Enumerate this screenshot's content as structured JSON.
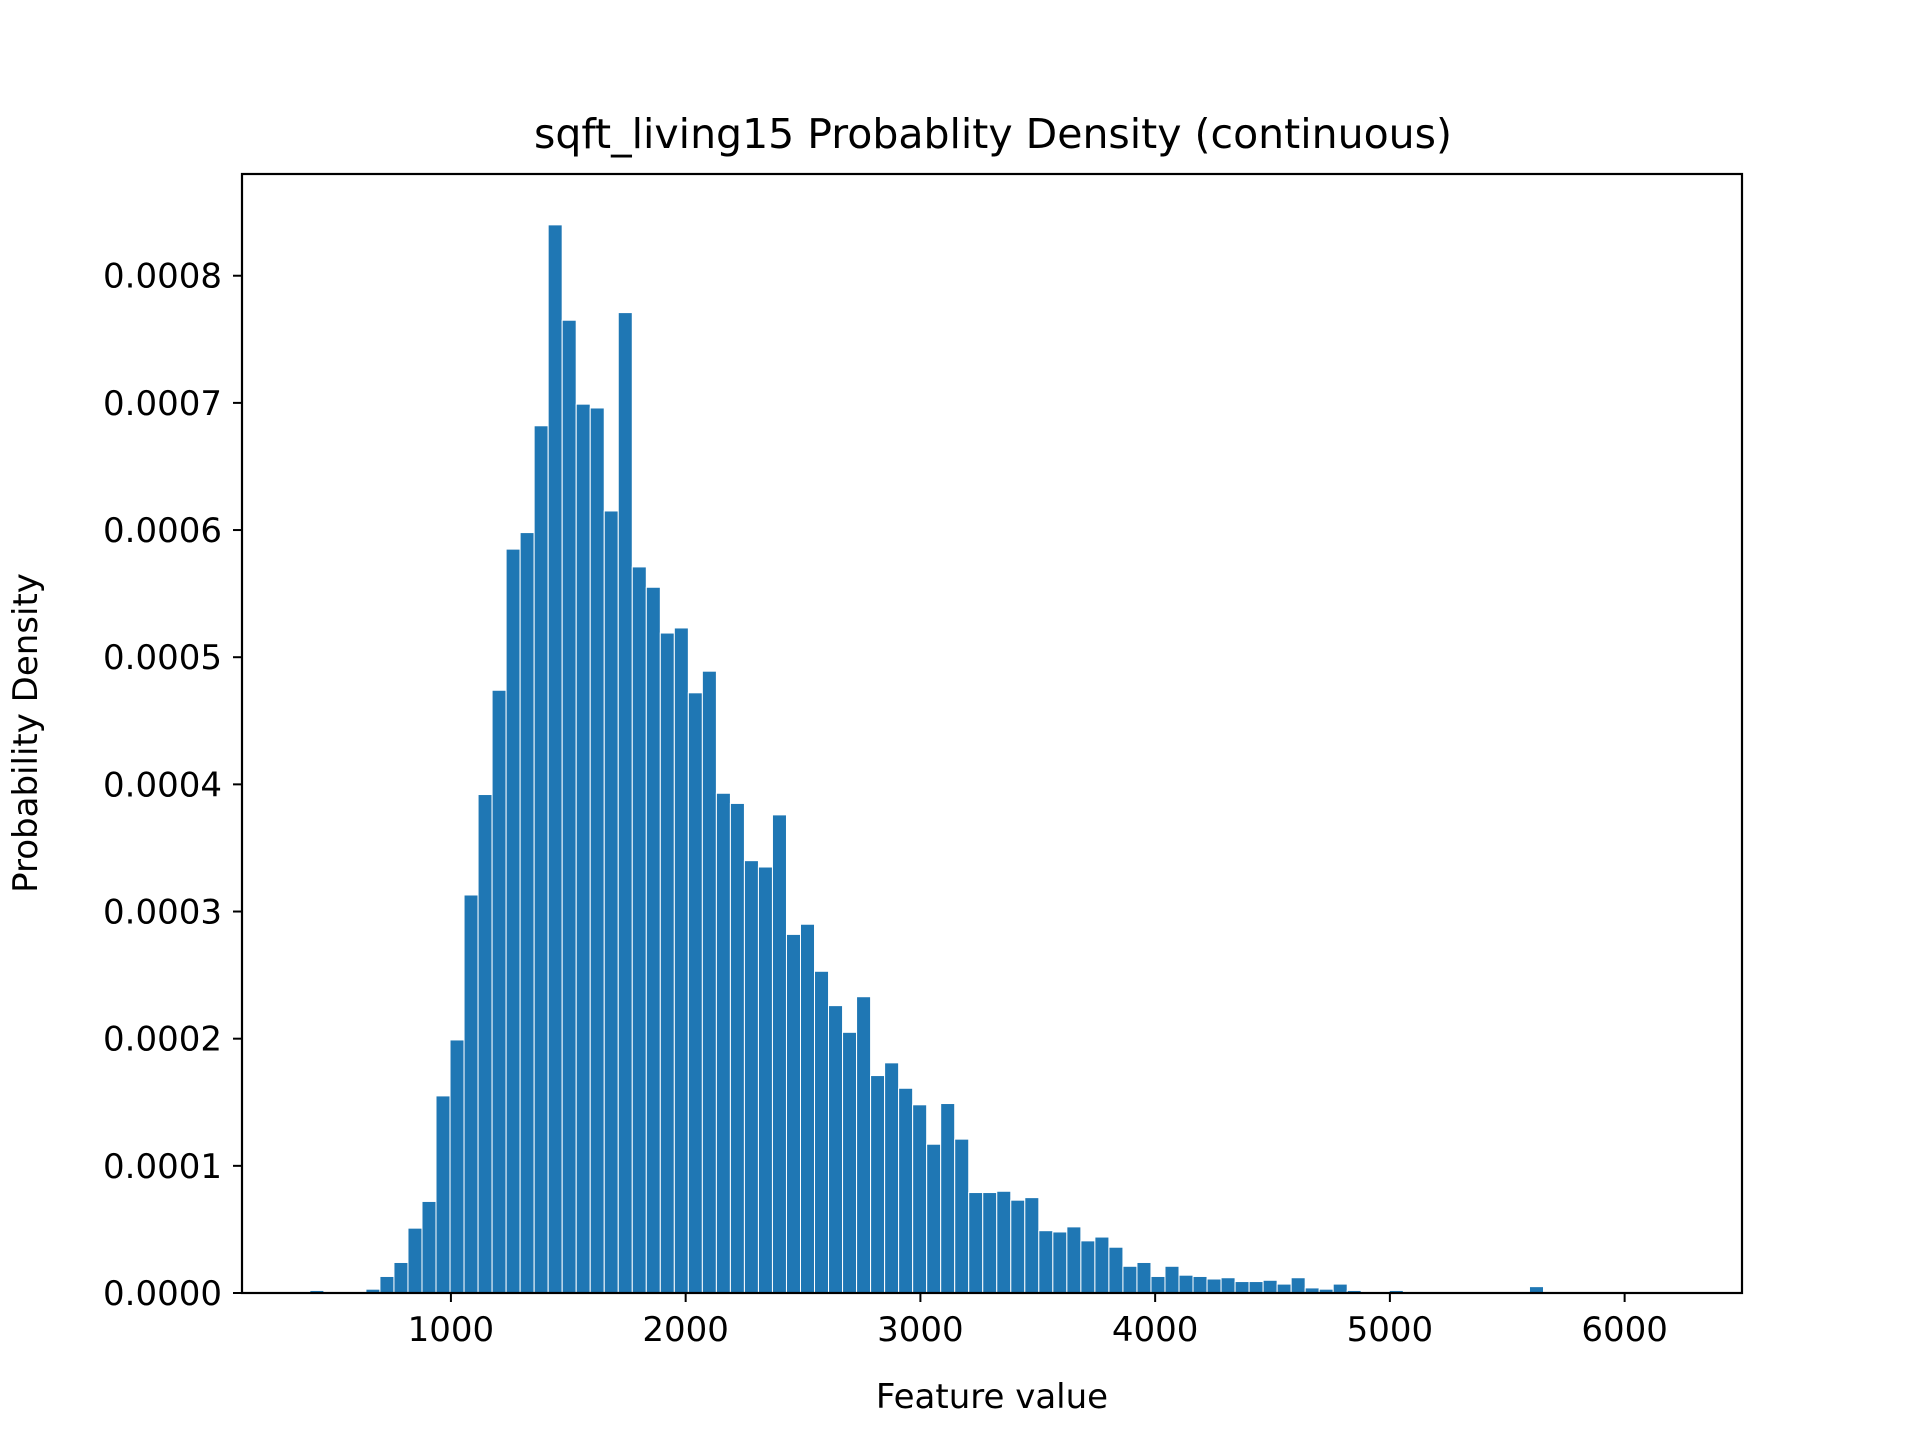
{
  "chart_data": {
    "type": "bar",
    "title": "sqft_living15 Probablity Density (continuous)",
    "xlabel": "Feature value",
    "ylabel": "Probability Density",
    "xlim": [
      110,
      6500
    ],
    "ylim": [
      0,
      0.00088
    ],
    "grid": false,
    "bar_color": "#1f77b4",
    "bin_start": 399,
    "bin_width": 59.72,
    "values": [
      2e-06,
      0,
      0,
      1e-06,
      3e-06,
      1.3e-05,
      2.4e-05,
      5.1e-05,
      7.2e-05,
      0.000155,
      0.000199,
      0.000313,
      0.000392,
      0.000474,
      0.000585,
      0.000598,
      0.000682,
      0.00084,
      0.000765,
      0.000699,
      0.000696,
      0.000615,
      0.000771,
      0.000571,
      0.000555,
      0.000519,
      0.000523,
      0.000472,
      0.000489,
      0.000393,
      0.000385,
      0.00034,
      0.000335,
      0.000376,
      0.000282,
      0.00029,
      0.000253,
      0.000226,
      0.000205,
      0.000233,
      0.000171,
      0.000181,
      0.000161,
      0.000148,
      0.000117,
      0.000149,
      0.000121,
      7.9e-05,
      7.9e-05,
      8e-05,
      7.3e-05,
      7.5e-05,
      4.9e-05,
      4.8e-05,
      5.2e-05,
      4.1e-05,
      4.4e-05,
      3.6e-05,
      2.1e-05,
      2.4e-05,
      1.3e-05,
      2.1e-05,
      1.4e-05,
      1.3e-05,
      1.1e-05,
      1.2e-05,
      9e-06,
      9e-06,
      1e-05,
      7e-06,
      1.2e-05,
      4e-06,
      3e-06,
      7e-06,
      2e-06,
      1e-06,
      0,
      2e-06,
      0,
      1e-06,
      0,
      0,
      0,
      0,
      1e-06,
      0,
      0,
      5e-06,
      0,
      0,
      0,
      0,
      0,
      0,
      0,
      0,
      0,
      0
    ],
    "x_ticks": [
      {
        "value": 1000,
        "label": "1000"
      },
      {
        "value": 2000,
        "label": "2000"
      },
      {
        "value": 3000,
        "label": "3000"
      },
      {
        "value": 4000,
        "label": "4000"
      },
      {
        "value": 5000,
        "label": "5000"
      },
      {
        "value": 6000,
        "label": "6000"
      }
    ],
    "y_ticks": [
      {
        "value": 0,
        "label": "0.0000"
      },
      {
        "value": 0.0001,
        "label": "0.0001"
      },
      {
        "value": 0.0002,
        "label": "0.0002"
      },
      {
        "value": 0.0003,
        "label": "0.0003"
      },
      {
        "value": 0.0004,
        "label": "0.0004"
      },
      {
        "value": 0.0005,
        "label": "0.0005"
      },
      {
        "value": 0.0006,
        "label": "0.0006"
      },
      {
        "value": 0.0007,
        "label": "0.0007"
      },
      {
        "value": 0.0008,
        "label": "0.0008"
      }
    ]
  }
}
